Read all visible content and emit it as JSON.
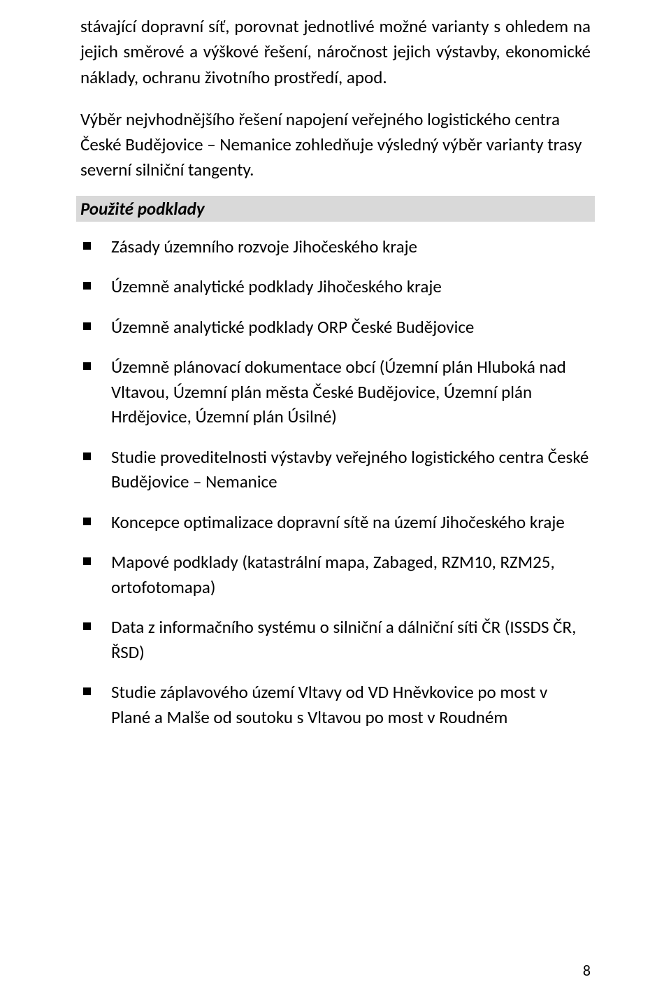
{
  "paragraphs": {
    "p1": "stávající dopravní síť, porovnat jednotlivé možné varianty s ohledem na jejich směrové a výškové řešení, náročnost jejich výstavby, ekonomické náklady, ochranu životního prostředí, apod.",
    "p2": "Výběr nejvhodnějšího řešení napojení veřejného logistického centra České Budějovice – Nemanice zohledňuje výsledný výběr varianty trasy severní silniční tangenty."
  },
  "section_heading": "Použité podklady",
  "bullets": [
    "Zásady územního rozvoje Jihočeského kraje",
    "Územně analytické podklady Jihočeského kraje",
    "Územně analytické podklady ORP České Budějovice",
    "Územně plánovací dokumentace obcí (Územní plán Hluboká nad Vltavou, Územní plán města České Budějovice, Územní plán Hrdějovice, Územní plán Úsilné)",
    "Studie proveditelnosti výstavby veřejného logistického centra České Budějovice – Nemanice",
    "Koncepce optimalizace dopravní sítě na území Jihočeského kraje",
    "Mapové podklady (katastrální mapa, Zabaged, RZM10, RZM25, ortofotomapa)",
    "Data z informačního systému o silniční a dálniční síti ČR (ISSDS ČR, ŘSD)",
    "Studie záplavového území Vltavy od VD Hněvkovice po most v Plané a Malše od soutoku s Vltavou po most v Roudném"
  ],
  "page_number": "8"
}
